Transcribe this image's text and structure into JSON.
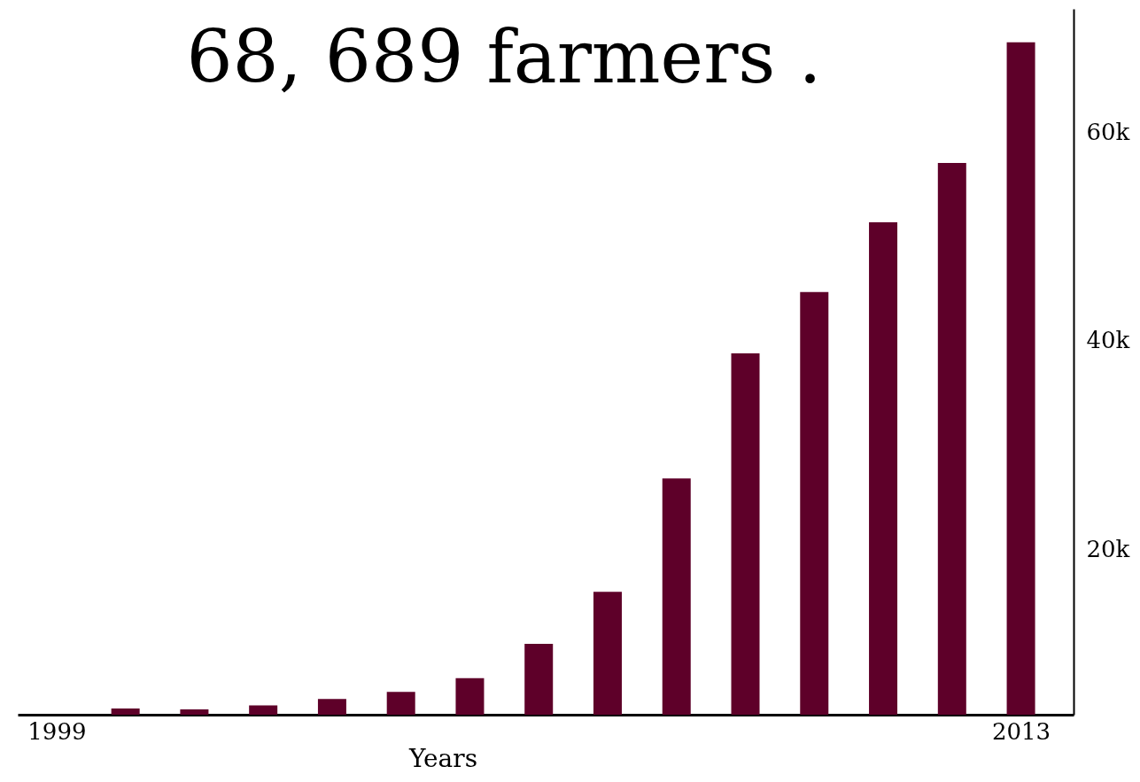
{
  "chart_data": {
    "type": "bar",
    "x": [
      2000,
      2001,
      2002,
      2003,
      2004,
      2005,
      2006,
      2007,
      2008,
      2009,
      2010,
      2011,
      2012,
      2013
    ],
    "values": [
      4700,
      4600,
      5000,
      5600,
      6300,
      7600,
      10900,
      15900,
      26800,
      38800,
      44700,
      51400,
      57100,
      68689
    ],
    "color": "#5e0029",
    "xlabel": "Years",
    "xlim": [
      1998.5,
      2013.7
    ],
    "xticks": [
      1999,
      2013
    ],
    "ylim": [
      4100,
      71900
    ],
    "yticks": [
      {
        "value": 20000,
        "label": "20k"
      },
      {
        "value": 40000,
        "label": "40k"
      },
      {
        "value": 60000,
        "label": "60k"
      }
    ],
    "annotations": [
      {
        "text": "68, 689 farmers .",
        "x": 2013,
        "y": 68689
      }
    ],
    "grid": false
  }
}
